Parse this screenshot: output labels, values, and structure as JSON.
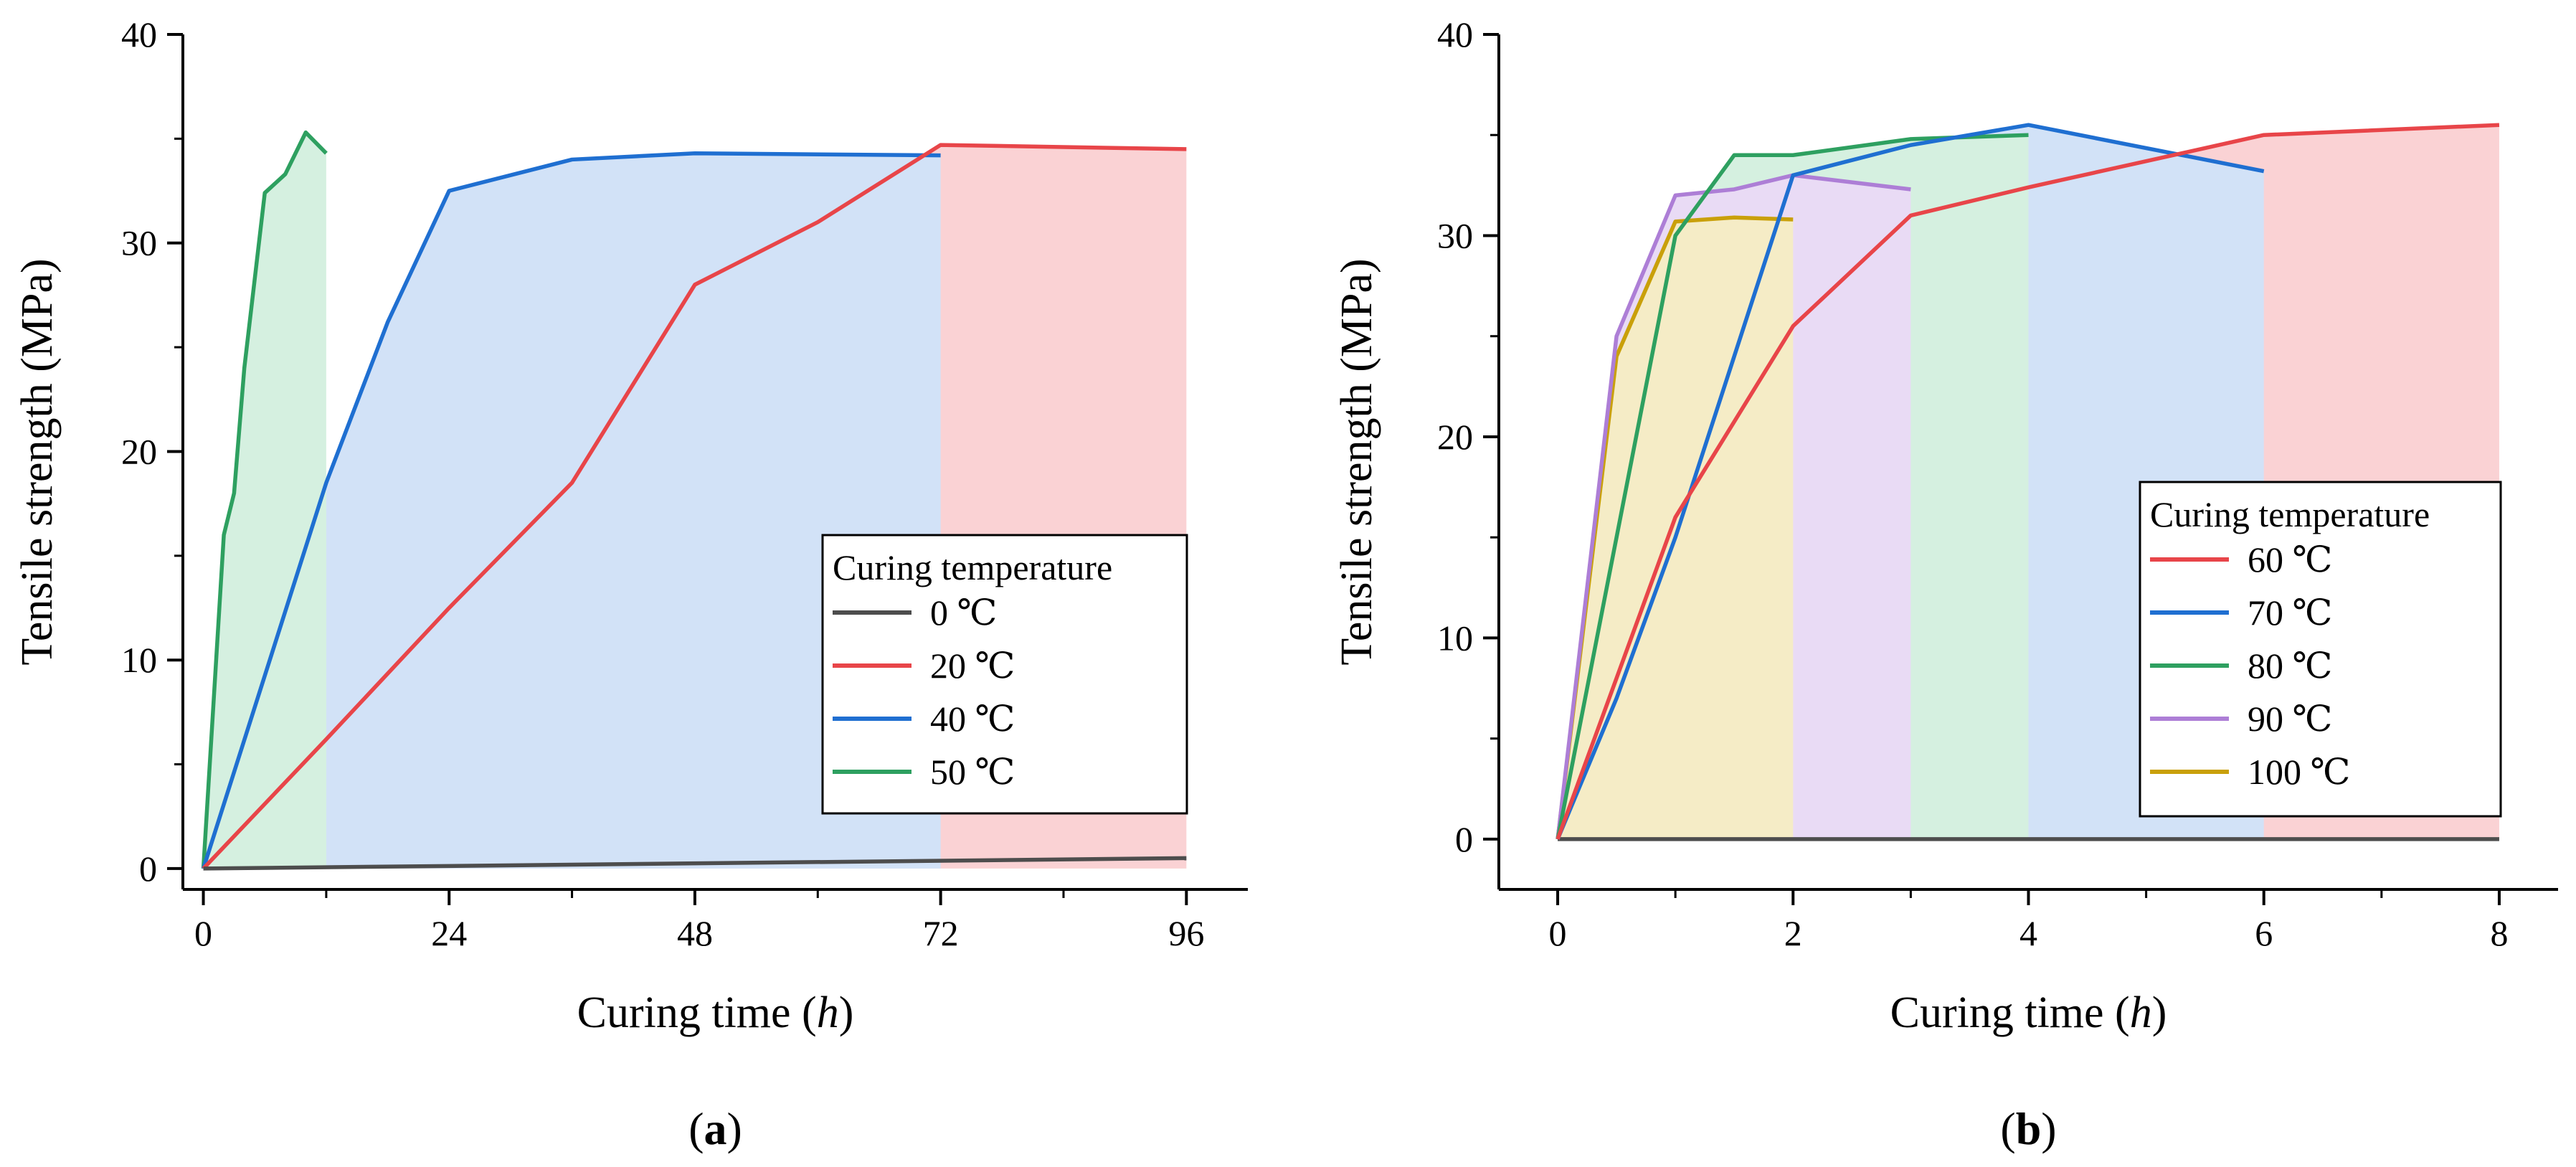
{
  "chart_data": [
    {
      "type": "area",
      "panel_label": "(a)",
      "panel_label_parts": [
        "(",
        "a",
        ")"
      ],
      "xlabel": "Curing time (h)",
      "xlabel_parts": [
        "Curing time (",
        "h",
        ")"
      ],
      "ylabel": "Tensile strength (MPa)",
      "xlim": [
        -2,
        102
      ],
      "ylim": [
        -1,
        40
      ],
      "xticks": [
        0,
        24,
        48,
        72,
        96
      ],
      "xtick_labels": [
        "0",
        "24",
        "48",
        "72",
        "96"
      ],
      "yticks": [
        0,
        10,
        20,
        30,
        40
      ],
      "ytick_labels": [
        "0",
        "10",
        "20",
        "30",
        "40"
      ],
      "legend_title": "Curing temperature",
      "legend_position": "lower-right",
      "series": [
        {
          "name": "0 ℃",
          "color": "#4d4d4d",
          "fill": "none",
          "x": [
            0,
            96
          ],
          "y": [
            0,
            0.5
          ]
        },
        {
          "name": "20 ℃",
          "color": "#e84549",
          "fill": "#fad2d4",
          "x": [
            0,
            12,
            24,
            36,
            48,
            60,
            72,
            96
          ],
          "y": [
            0,
            6.2,
            12.5,
            18.5,
            28,
            31,
            34.7,
            34.5
          ]
        },
        {
          "name": "40 ℃",
          "color": "#1f6fd1",
          "fill": "#d2e2f7",
          "x": [
            0,
            12,
            18,
            24,
            36,
            48,
            72
          ],
          "y": [
            0,
            18.5,
            26.2,
            32.5,
            34,
            34.3,
            34.2
          ]
        },
        {
          "name": "50 ℃",
          "color": "#2ea060",
          "fill": "#d5f0e0",
          "x": [
            0,
            2,
            3,
            4,
            6,
            8,
            10,
            12
          ],
          "y": [
            0,
            16,
            18,
            24,
            32.4,
            33.3,
            35.3,
            34.3
          ]
        }
      ]
    },
    {
      "type": "area",
      "panel_label": "(b)",
      "panel_label_parts": [
        "(",
        "b",
        ")"
      ],
      "xlabel": "Curing time (h)",
      "xlabel_parts": [
        "Curing time (",
        "h",
        ")"
      ],
      "ylabel": "Tensile strength (MPa)",
      "xlim": [
        -0.5,
        8.5
      ],
      "ylim": [
        -2.5,
        40
      ],
      "xticks": [
        0,
        2,
        4,
        6,
        8
      ],
      "xtick_labels": [
        "0",
        "2",
        "4",
        "6",
        "8"
      ],
      "yticks": [
        0,
        10,
        20,
        30,
        40
      ],
      "ytick_labels": [
        "0",
        "10",
        "20",
        "30",
        "40"
      ],
      "legend_title": "Curing temperature",
      "legend_position": "right",
      "series": [
        {
          "name": "60 ℃",
          "color": "#e84549",
          "fill": "#fad2d4",
          "x": [
            0,
            1,
            2,
            3,
            4,
            6,
            8
          ],
          "y": [
            0,
            16,
            25.5,
            31,
            32.4,
            35,
            35.5
          ]
        },
        {
          "name": "70 ℃",
          "color": "#1f6fd1",
          "fill": "#d2e2f7",
          "x": [
            0,
            0.5,
            1,
            2,
            3,
            4,
            6
          ],
          "y": [
            0,
            7,
            15,
            33,
            34.5,
            35.5,
            33.2
          ]
        },
        {
          "name": "80 ℃",
          "color": "#2ea060",
          "fill": "#d5f0e0",
          "x": [
            0,
            1,
            1.5,
            2,
            3,
            4
          ],
          "y": [
            0,
            30,
            34,
            34,
            34.8,
            35
          ]
        },
        {
          "name": "90 ℃",
          "color": "#ad7ed6",
          "fill": "#e9dbf5",
          "x": [
            0,
            0.5,
            1,
            1.5,
            2,
            3
          ],
          "y": [
            0,
            25,
            32,
            32.3,
            33,
            32.3
          ]
        },
        {
          "name": "100 ℃",
          "color": "#c9a00a",
          "fill": "#f5ecc6",
          "x": [
            0,
            0.5,
            1,
            1.5,
            2
          ],
          "y": [
            0,
            24,
            30.7,
            30.9,
            30.8
          ]
        },
        {
          "name": "",
          "legend": false,
          "color": "#4d4d4d",
          "fill": "none",
          "x": [
            0,
            8
          ],
          "y": [
            0,
            0
          ]
        }
      ]
    }
  ]
}
